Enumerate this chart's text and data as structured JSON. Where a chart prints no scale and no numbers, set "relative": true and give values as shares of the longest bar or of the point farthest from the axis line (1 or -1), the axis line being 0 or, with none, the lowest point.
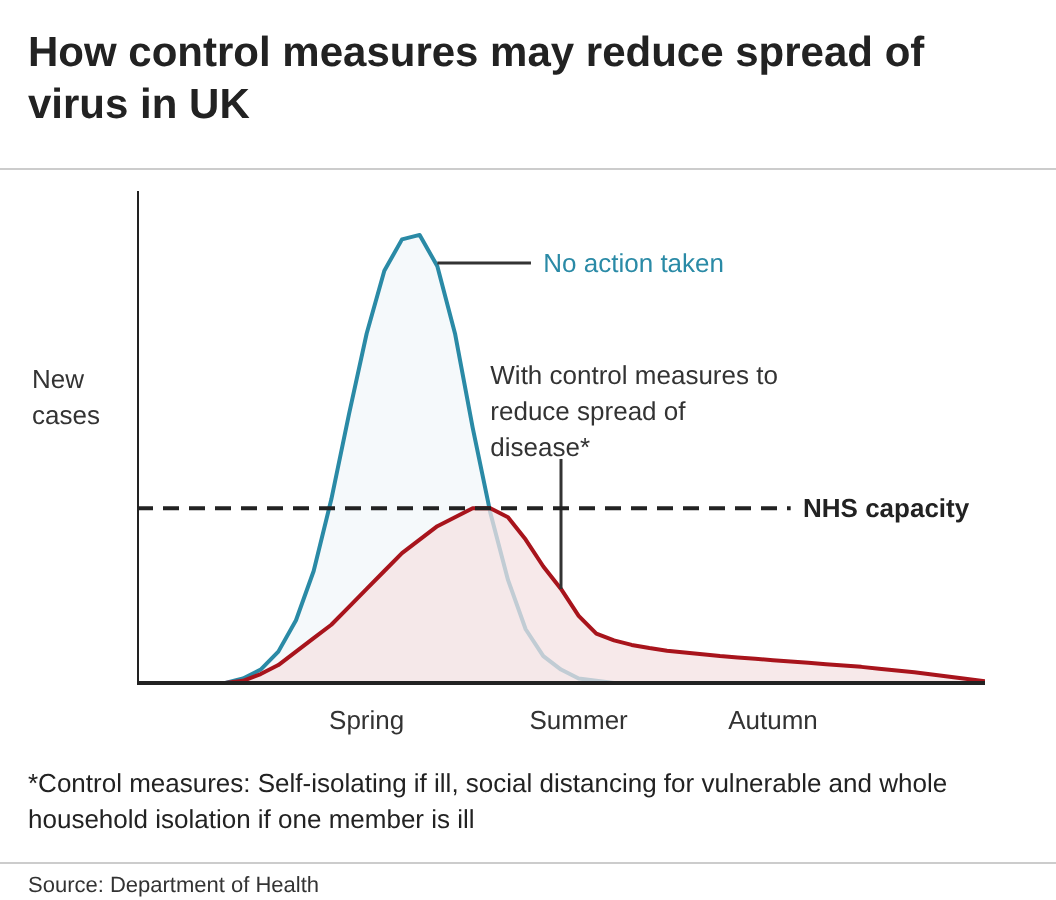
{
  "chart_data": {
    "type": "area",
    "title": "How control measures may reduce spread of virus in UK",
    "ylabel": "New cases",
    "relative": true,
    "categories": [
      null,
      null,
      null,
      null,
      null,
      null,
      null,
      null,
      null,
      null,
      null,
      null,
      null,
      "Spring",
      null,
      null,
      null,
      null,
      null,
      null,
      null,
      null,
      null,
      null,
      null,
      "Summer",
      null,
      null,
      null,
      null,
      null,
      null,
      null,
      null,
      null,
      null,
      "Autumn",
      null,
      null,
      null,
      null,
      null,
      null,
      null,
      null,
      null,
      null,
      null,
      null
    ],
    "series": [
      {
        "name": "No action taken",
        "color": "#2a8aa6",
        "values": [
          0,
          0,
          0,
          0,
          0,
          0,
          0.01,
          0.03,
          0.07,
          0.14,
          0.25,
          0.41,
          0.6,
          0.78,
          0.92,
          0.99,
          1.0,
          0.93,
          0.78,
          0.57,
          0.38,
          0.23,
          0.12,
          0.06,
          0.03,
          0.01,
          0.005,
          0,
          0,
          0,
          0,
          0,
          0,
          0,
          0,
          0,
          0,
          0,
          0,
          0,
          0,
          0,
          0,
          0,
          0,
          0,
          0,
          0,
          0
        ]
      },
      {
        "name": "With control measures to reduce spread of disease*",
        "color": "#a8141c",
        "values": [
          0,
          0,
          0,
          0,
          0,
          0,
          0.005,
          0.02,
          0.04,
          0.07,
          0.1,
          0.13,
          0.17,
          0.21,
          0.25,
          0.29,
          0.32,
          0.35,
          0.37,
          0.39,
          0.39,
          0.37,
          0.32,
          0.26,
          0.21,
          0.15,
          0.11,
          0.095,
          0.085,
          0.078,
          0.072,
          0.068,
          0.064,
          0.06,
          0.057,
          0.054,
          0.051,
          0.048,
          0.045,
          0.042,
          0.039,
          0.036,
          0.032,
          0.028,
          0.024,
          0.019,
          0.014,
          0.009,
          0.004
        ]
      }
    ],
    "ref_lines": [
      {
        "axis": "y",
        "value": 0.39,
        "label": "NHS capacity",
        "color": "#222222",
        "line_style": "dashed"
      }
    ],
    "annotations": [
      "*Control measures: Self-isolating if ill, social distancing for vulnerable and whole household isolation if one member is ill",
      "Source: Department of Health"
    ]
  }
}
